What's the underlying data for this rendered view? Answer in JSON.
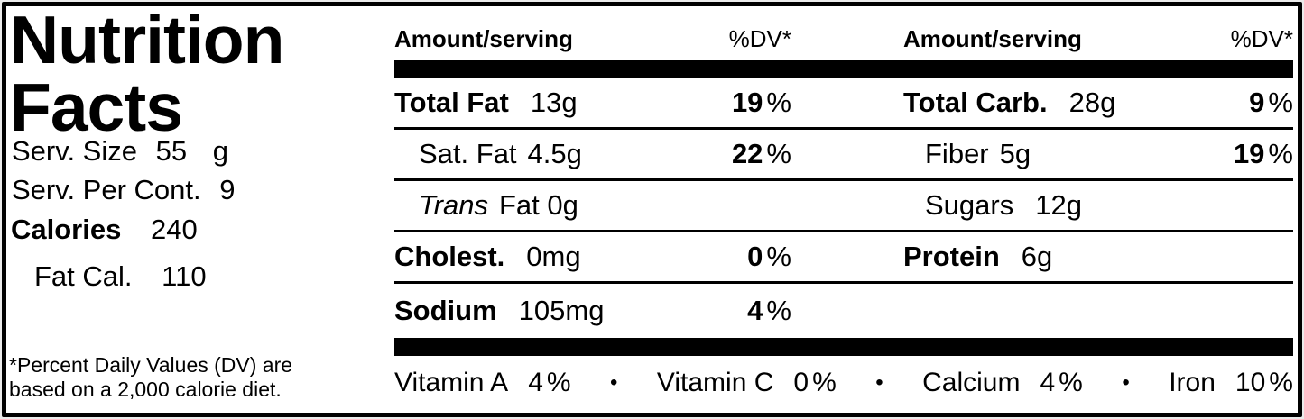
{
  "label": {
    "title_line1": "Nutrition",
    "title_line2": "Facts",
    "serving": {
      "size_label": "Serv. Size",
      "size_value": "55",
      "size_unit": "g",
      "per_container_label": "Serv. Per Cont.",
      "per_container_value": "9",
      "calories_label": "Calories",
      "calories_value": "240",
      "fat_calories_label": "Fat Cal.",
      "fat_calories_value": "110"
    },
    "footnote_line1": "*Percent Daily Values (DV) are",
    "footnote_line2": "based on a 2,000 calorie diet.",
    "table": {
      "left_header": {
        "amount": "Amount/serving",
        "dv": "%DV*"
      },
      "right_header": {
        "amount": "Amount/serving",
        "dv": "%DV*"
      },
      "bullet": "•",
      "rows": [
        {
          "left": {
            "label": "Total Fat",
            "value": "13g",
            "dv": "19",
            "pct": "%"
          },
          "right": {
            "label": "Total Carb.",
            "value": "28g",
            "dv": "9",
            "pct": "%"
          }
        },
        {
          "left": {
            "label": "Sat. Fat",
            "value": "4.5g",
            "dv": "22",
            "pct": "%"
          },
          "right": {
            "label": "Fiber",
            "value": "5g",
            "dv": "19",
            "pct": "%"
          }
        },
        {
          "left": {
            "label": "Trans",
            "value": "Fat 0g"
          },
          "right": {
            "label": "Sugars",
            "value": "12g"
          }
        },
        {
          "left": {
            "label": "Cholest.",
            "value": "0mg",
            "dv": "0",
            "pct": "%"
          },
          "right": {
            "label": "Protein",
            "value": "6g"
          }
        },
        {
          "left": {
            "label": "Sodium",
            "value": "105mg",
            "dv": "4",
            "pct": "%"
          },
          "right": null
        }
      ],
      "vitamins": [
        {
          "label": "Vitamin A",
          "value": "4",
          "pct": "%"
        },
        {
          "label": "Vitamin C",
          "value": "0",
          "pct": "%"
        },
        {
          "label": "Calcium",
          "value": "4",
          "pct": "%"
        },
        {
          "label": "Iron",
          "value": "10",
          "pct": "%"
        }
      ]
    },
    "colors": {
      "ink": "#000000",
      "paper": "#ffffff"
    }
  }
}
